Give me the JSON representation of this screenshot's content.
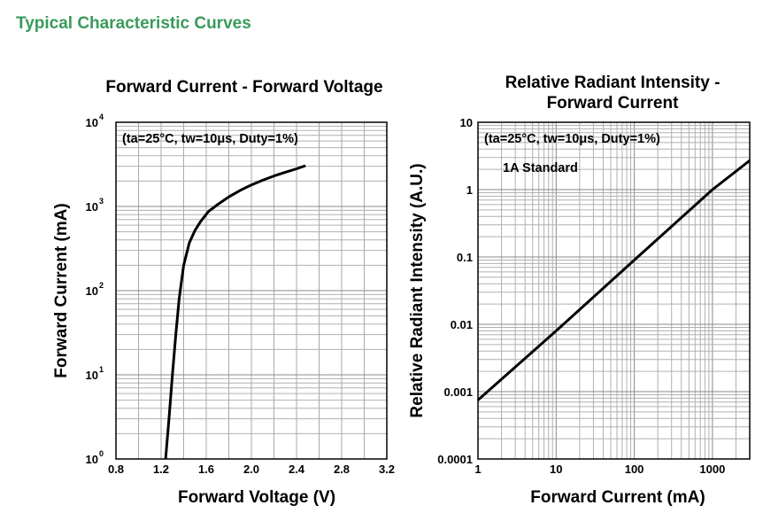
{
  "page": {
    "heading": "Typical Characteristic Curves",
    "heading_color": "#3a9a5b"
  },
  "chart_data": [
    {
      "type": "line",
      "title": "Forward Current - Forward Voltage",
      "xlabel": "Forward Voltage (V)",
      "ylabel": "Forward Current (mA)",
      "xlim": [
        0.8,
        3.2
      ],
      "ylim": [
        1,
        10000
      ],
      "yscale": "log",
      "grid": true,
      "x_ticks": [
        "0.8",
        "1.2",
        "1.6",
        "2.0",
        "2.4",
        "2.8",
        "3.2"
      ],
      "y_ticks": [
        {
          "base": "10",
          "exp": "0"
        },
        {
          "base": "10",
          "exp": "1"
        },
        {
          "base": "10",
          "exp": "2"
        },
        {
          "base": "10",
          "exp": "3"
        },
        {
          "base": "10",
          "exp": "4"
        }
      ],
      "annotations": [
        "(ta=25°C, tw=10μs, Duty=1%)"
      ],
      "series": [
        {
          "x": [
            1.24,
            1.27,
            1.3,
            1.33,
            1.36,
            1.4,
            1.45,
            1.5,
            1.55,
            1.62,
            1.7,
            1.8,
            1.9,
            2.0,
            2.1,
            2.2,
            2.3,
            2.4,
            2.48
          ],
          "y": [
            1,
            3,
            10,
            30,
            80,
            200,
            370,
            520,
            660,
            870,
            1050,
            1300,
            1550,
            1800,
            2050,
            2300,
            2550,
            2800,
            3050
          ]
        }
      ]
    },
    {
      "type": "line",
      "title": "Relative Radiant Intensity -\nForward Current",
      "xlabel": "Forward Current (mA)",
      "ylabel": "Relative Radiant Intensity (A.U.)",
      "xlim": [
        1,
        3000
      ],
      "ylim": [
        0.0001,
        10
      ],
      "xscale": "log",
      "yscale": "log",
      "grid": true,
      "x_ticks": [
        "1",
        "10",
        "100",
        "1000"
      ],
      "y_ticks": [
        "0.0001",
        "0.001",
        "0.01",
        "0.1",
        "1",
        "10"
      ],
      "annotations": [
        "(ta=25°C, tw=10μs, Duty=1%)",
        "1A Standard"
      ],
      "series": [
        {
          "x": [
            1,
            10,
            100,
            1000,
            3000
          ],
          "y": [
            0.00075,
            0.008,
            0.09,
            1,
            2.7
          ]
        }
      ]
    }
  ]
}
